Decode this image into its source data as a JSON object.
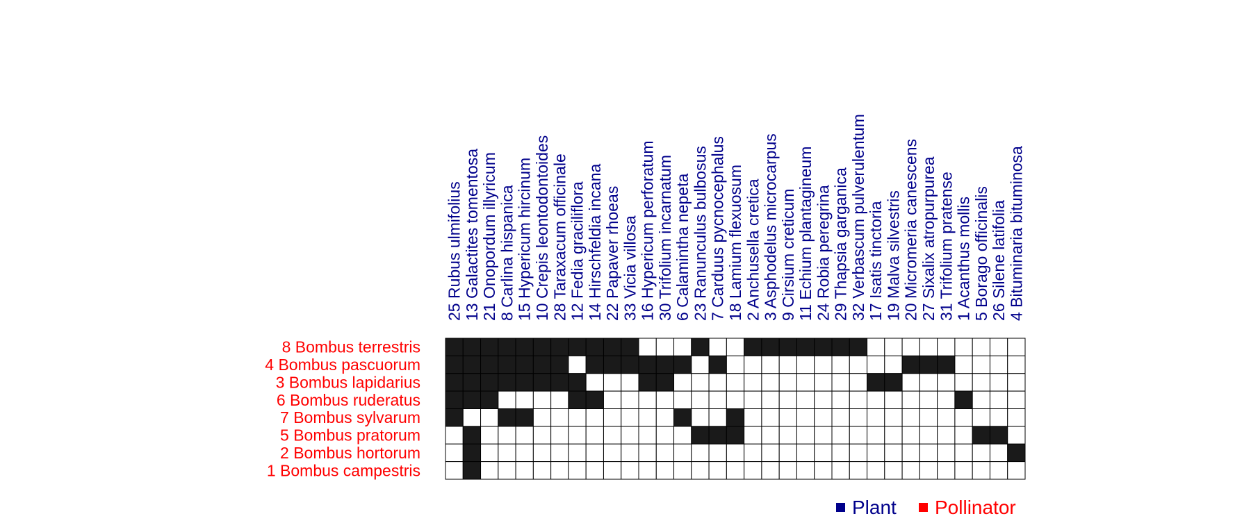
{
  "colors": {
    "plant": "#00008B",
    "pollinator": "#FF0000",
    "cell_filled": "#1a1a1a",
    "cell_empty": "#ffffff",
    "grid": "#000000"
  },
  "legend": {
    "plant_label": "Plant",
    "pollinator_label": "Pollinator"
  },
  "chart_data": {
    "type": "heatmap",
    "columns": [
      "25 Rubus ulmifolius",
      "13 Galactites tomentosa",
      "21 Onopordum illyricum",
      "8 Carlina hispanica",
      "15 Hypericum hircinum",
      "10 Crepis leontodontoides",
      "28 Taraxacum officinale",
      "12 Fedia graciliflora",
      "14 Hirschfeldia incana",
      "22 Papaver rhoeas",
      "33 Vicia villosa",
      "16 Hypericum perforatum",
      "30 Trifolium incarnatum",
      "6 Calamintha nepeta",
      "23 Ranunculus bulbosus",
      "7 Carduus pycnocephalus",
      "18 Lamium flexuosum",
      "2 Anchusella cretica",
      "3 Asphodelus microcarpus",
      "9 Cirsium creticum",
      "11 Echium plantagineum",
      "24 Robia peregrina",
      "29 Thapsia garganica",
      "32 Verbascum pulverulentum",
      "17 Isatis tinctoria",
      "19 Malva silvestris",
      "20 Micromeria canescens",
      "27 Sixalix atropurpurea",
      "31 Trifolium pratense",
      "1 Acanthus mollis",
      "5 Borago officinalis",
      "26 Silene latifolia",
      "4 Bituminaria bituminosa"
    ],
    "rows": [
      "8 Bombus terrestris",
      "4 Bombus pascuorum",
      "3 Bombus lapidarius",
      "6 Bombus ruderatus",
      "7 Bombus sylvarum",
      "5 Bombus pratorum",
      "2 Bombus hortorum",
      "1 Bombus campestris"
    ],
    "matrix": [
      [
        1,
        1,
        1,
        1,
        1,
        1,
        1,
        1,
        1,
        1,
        1,
        0,
        0,
        0,
        1,
        0,
        0,
        1,
        1,
        1,
        1,
        1,
        1,
        1,
        0,
        0,
        0,
        0,
        0,
        0,
        0,
        0,
        0
      ],
      [
        1,
        1,
        1,
        1,
        1,
        1,
        1,
        0,
        1,
        1,
        1,
        1,
        1,
        1,
        0,
        1,
        0,
        0,
        0,
        0,
        0,
        0,
        0,
        0,
        0,
        0,
        1,
        1,
        1,
        0,
        0,
        0,
        0
      ],
      [
        1,
        1,
        1,
        1,
        1,
        1,
        1,
        1,
        0,
        0,
        0,
        1,
        1,
        0,
        0,
        0,
        0,
        0,
        0,
        0,
        0,
        0,
        0,
        0,
        1,
        1,
        0,
        0,
        0,
        0,
        0,
        0,
        0
      ],
      [
        1,
        1,
        1,
        0,
        0,
        0,
        0,
        1,
        1,
        0,
        0,
        0,
        0,
        0,
        0,
        0,
        0,
        0,
        0,
        0,
        0,
        0,
        0,
        0,
        0,
        0,
        0,
        0,
        0,
        1,
        0,
        0,
        0
      ],
      [
        1,
        0,
        0,
        1,
        1,
        0,
        0,
        0,
        0,
        0,
        0,
        0,
        0,
        1,
        0,
        0,
        1,
        0,
        0,
        0,
        0,
        0,
        0,
        0,
        0,
        0,
        0,
        0,
        0,
        0,
        0,
        0,
        0
      ],
      [
        0,
        1,
        0,
        0,
        0,
        0,
        0,
        0,
        0,
        0,
        0,
        0,
        0,
        0,
        1,
        1,
        1,
        0,
        0,
        0,
        0,
        0,
        0,
        0,
        0,
        0,
        0,
        0,
        0,
        0,
        1,
        1,
        0
      ],
      [
        0,
        1,
        0,
        0,
        0,
        0,
        0,
        0,
        0,
        0,
        0,
        0,
        0,
        0,
        0,
        0,
        0,
        0,
        0,
        0,
        0,
        0,
        0,
        0,
        0,
        0,
        0,
        0,
        0,
        0,
        0,
        0,
        1
      ],
      [
        0,
        1,
        0,
        0,
        0,
        0,
        0,
        0,
        0,
        0,
        0,
        0,
        0,
        0,
        0,
        0,
        0,
        0,
        0,
        0,
        0,
        0,
        0,
        0,
        0,
        0,
        0,
        0,
        0,
        0,
        0,
        0,
        0
      ]
    ]
  }
}
